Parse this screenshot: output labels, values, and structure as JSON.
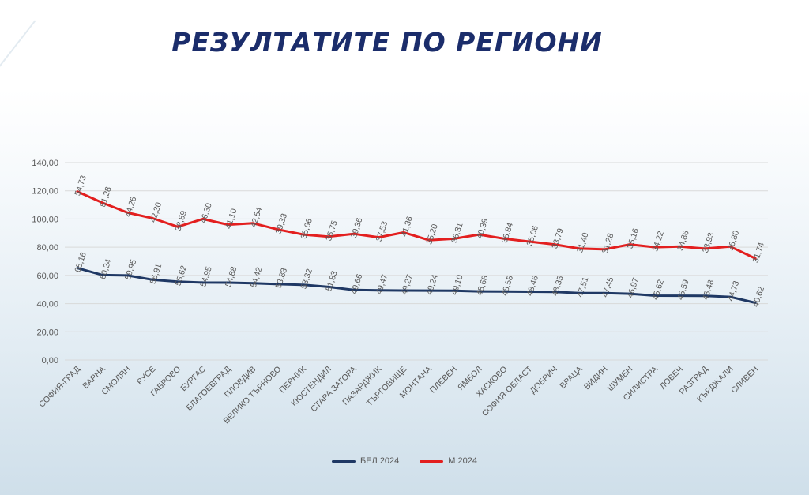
{
  "slide": {
    "title": "РЕЗУЛТАТИТЕ ПО РЕГИОНИ"
  },
  "chart_data": {
    "type": "line",
    "title": "",
    "xlabel": "",
    "ylabel": "",
    "ylim": [
      0,
      140
    ],
    "yticks": [
      "0,00",
      "20,00",
      "40,00",
      "60,00",
      "80,00",
      "100,00",
      "120,00",
      "140,00"
    ],
    "grid": true,
    "legend_position": "bottom",
    "categories": [
      "СОФИЯ-ГРАД",
      "ВАРНА",
      "СМОЛЯН",
      "РУСЕ",
      "ГАБРОВО",
      "БУРГАС",
      "БЛАГОЕВГРАД",
      "ПЛОВДИВ",
      "ВЕЛИКО ТЪРНОВО",
      "ПЕРНИК",
      "КЮСТЕНДИЛ",
      "СТАРА ЗАГОРА",
      "ПАЗАРДЖИК",
      "ТЪРГОВИЩЕ",
      "МОНТАНА",
      "ПЛЕВЕН",
      "ЯМБОЛ",
      "ХАСКОВО",
      "СОФИЯ-ОБЛАСТ",
      "ДОБРИЧ",
      "ВРАЦА",
      "ВИДИН",
      "ШУМЕН",
      "СИЛИСТРА",
      "ЛОВЕЧ",
      "РАЗГРАД",
      "КЪРДЖАЛИ",
      "СЛИВЕН"
    ],
    "series": [
      {
        "name": "БЕЛ 2024",
        "color": "#1f3864",
        "values": [
          65.16,
          60.24,
          59.95,
          56.91,
          55.62,
          54.95,
          54.88,
          54.42,
          53.83,
          53.32,
          51.83,
          49.66,
          49.47,
          49.27,
          49.24,
          49.1,
          48.68,
          48.55,
          48.46,
          48.35,
          47.51,
          47.45,
          46.97,
          45.62,
          45.59,
          45.48,
          44.73,
          40.62
        ],
        "labels": [
          "65,16",
          "60,24",
          "59,95",
          "56,91",
          "55,62",
          "54,95",
          "54,88",
          "54,42",
          "53,83",
          "53,32",
          "51,83",
          "49,66",
          "49,47",
          "49,27",
          "49,24",
          "49,10",
          "48,68",
          "48,55",
          "48,46",
          "48,35",
          "47,51",
          "47,45",
          "46,97",
          "45,62",
          "45,59",
          "45,48",
          "44,73",
          "40,62"
        ]
      },
      {
        "name": "М 2024",
        "color": "#e31f1f",
        "values": [
          119.5,
          111.5,
          104.5,
          100.5,
          94.5,
          100.0,
          96.0,
          97.0,
          92.5,
          89.0,
          87.5,
          89.5,
          87.0,
          90.5,
          85.0,
          86.0,
          89.0,
          86.0,
          84.0,
          82.0,
          79.0,
          78.5,
          82.0,
          80.0,
          80.5,
          79.0,
          80.5,
          72.0
        ],
        "labels": [
          "54,73",
          "51,28",
          "44,26",
          "42,30",
          "38,59",
          "46,30",
          "41,10",
          "42,54",
          "39,33",
          "35,66",
          "35,75",
          "39,36",
          "37,53",
          "41,36",
          "35,20",
          "36,31",
          "40,39",
          "36,84",
          "35,06",
          "33,79",
          "31,40",
          "31,28",
          "35,16",
          "34,22",
          "34,86",
          "33,93",
          "36,80",
          "31,74"
        ]
      }
    ]
  }
}
